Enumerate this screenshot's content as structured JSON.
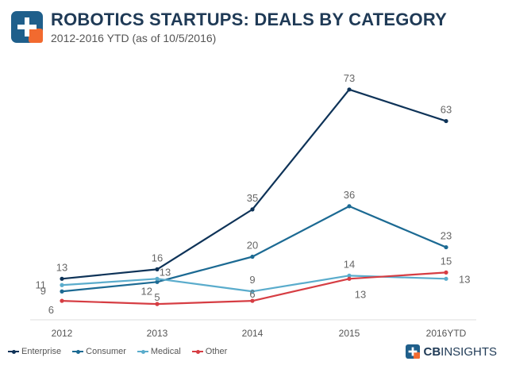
{
  "header": {
    "title": "ROBOTICS STARTUPS: DEALS BY CATEGORY",
    "subtitle": "2012-2016 YTD (as of 10/5/2016)"
  },
  "brand": {
    "prefix": "CB",
    "name": "INSIGHTS"
  },
  "colors": {
    "enterprise": "#0e3358",
    "consumer": "#1c6a93",
    "medical": "#5aaccc",
    "other": "#d63d43",
    "logo_blue": "#1f5f8b",
    "logo_orange": "#f26a2f"
  },
  "chart_data": {
    "type": "line",
    "categories": [
      "2012",
      "2013",
      "2014",
      "2015",
      "2016YTD"
    ],
    "ylim": [
      0,
      80
    ],
    "grid": false,
    "legend_position": "bottom-left",
    "series": [
      {
        "name": "Enterprise",
        "values": [
          13,
          16,
          35,
          73,
          63
        ]
      },
      {
        "name": "Consumer",
        "values": [
          9,
          12,
          20,
          36,
          23
        ]
      },
      {
        "name": "Medical",
        "values": [
          11,
          13,
          9,
          14,
          13
        ]
      },
      {
        "name": "Other",
        "values": [
          6,
          5,
          6,
          13,
          15
        ]
      }
    ]
  }
}
